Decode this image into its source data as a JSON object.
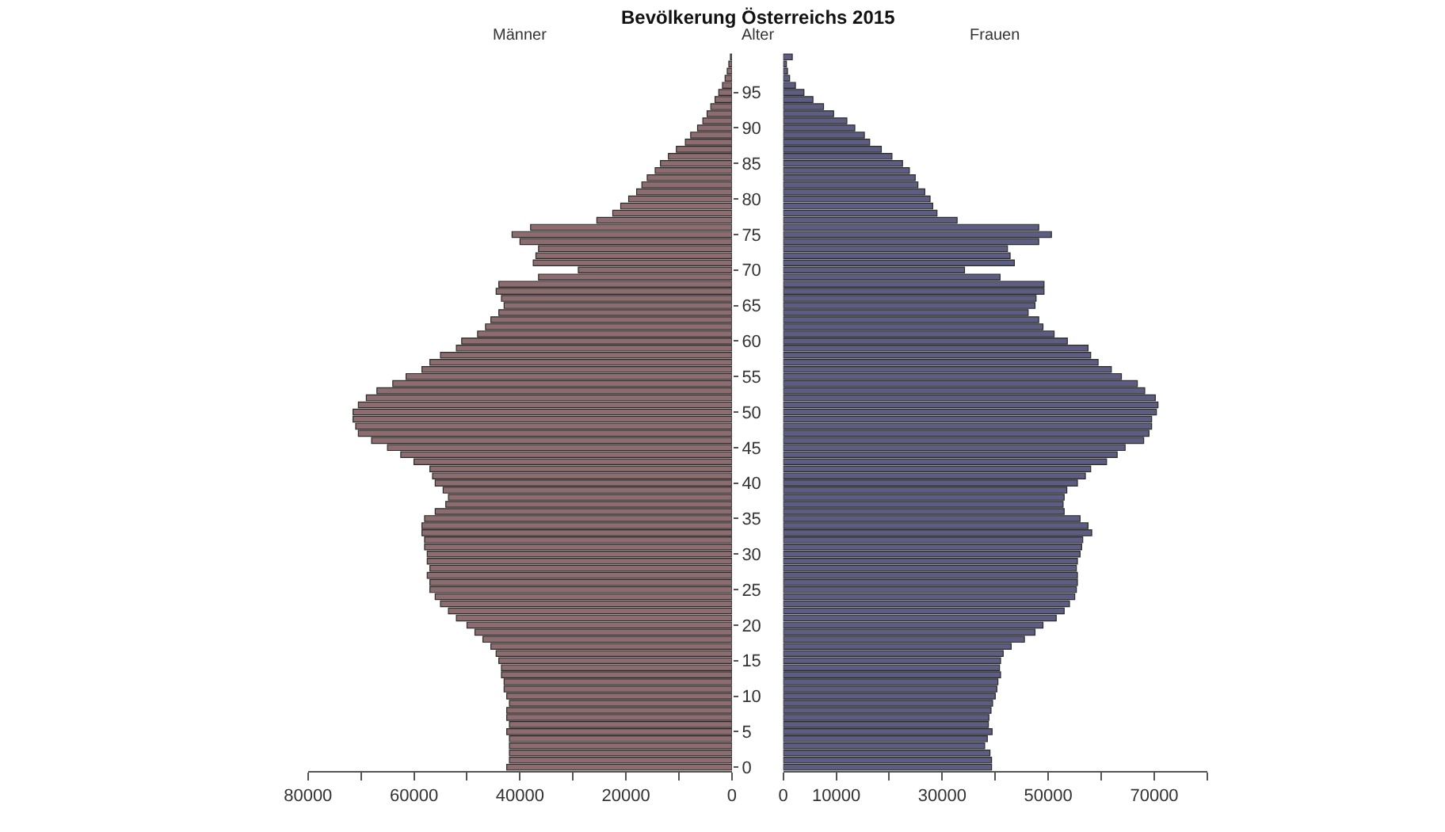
{
  "chart_data": [
    {
      "type": "bar",
      "orientation": "horizontal",
      "title": "Bevölkerung Österreichs 2015",
      "ylabel": "Alter",
      "categories": [
        null,
        null,
        null,
        null,
        null,
        "95",
        null,
        null,
        null,
        null,
        "90",
        null,
        null,
        null,
        null,
        "85",
        null,
        null,
        null,
        null,
        "80",
        null,
        null,
        null,
        null,
        "75",
        null,
        null,
        null,
        null,
        "70",
        null,
        null,
        null,
        null,
        "65",
        null,
        null,
        null,
        null,
        "60",
        null,
        null,
        null,
        null,
        "55",
        null,
        null,
        null,
        null,
        "50",
        null,
        null,
        null,
        null,
        "45",
        null,
        null,
        null,
        null,
        "40",
        null,
        null,
        null,
        null,
        "35",
        null,
        null,
        null,
        null,
        "30",
        null,
        null,
        null,
        null,
        "25",
        null,
        null,
        null,
        null,
        "20",
        null,
        null,
        null,
        null,
        "15",
        null,
        null,
        null,
        null,
        "10",
        null,
        null,
        null,
        null,
        "5",
        null,
        null,
        null,
        null,
        "0"
      ],
      "series": [
        {
          "name": "Männer",
          "color": "#8c6c6e",
          "values": [
            300,
            600,
            900,
            1300,
            1800,
            2500,
            3200,
            4000,
            4700,
            5500,
            6500,
            7800,
            8800,
            10500,
            12000,
            13500,
            14500,
            16000,
            17000,
            18000,
            19500,
            21000,
            22500,
            25500,
            38000,
            41500,
            40000,
            36500,
            37000,
            37500,
            29000,
            36500,
            44000,
            44500,
            43500,
            43000,
            44000,
            45500,
            46500,
            48000,
            51000,
            52000,
            55000,
            57000,
            58500,
            61500,
            64000,
            67000,
            69000,
            70500,
            71500,
            71500,
            71000,
            70500,
            68000,
            65000,
            62500,
            60000,
            57000,
            56500,
            56000,
            54500,
            53500,
            54000,
            56000,
            58000,
            58500,
            58500,
            58000,
            58000,
            57500,
            57500,
            57000,
            57500,
            57000,
            57000,
            56000,
            55000,
            53500,
            52000,
            50000,
            48500,
            47000,
            45500,
            44500,
            44000,
            43500,
            43500,
            43000,
            43000,
            42500,
            42000,
            42500,
            42500,
            42000,
            42500,
            42000,
            42000,
            42000,
            42000,
            42500
          ]
        }
      ],
      "xlim": [
        80000,
        0
      ],
      "xticks": [
        80000,
        {
          "value": 70000,
          "label": null
        },
        60000,
        {
          "value": 50000,
          "label": null
        },
        40000,
        {
          "value": 30000,
          "label": null
        },
        20000,
        {
          "value": 10000,
          "label": null
        },
        0
      ]
    },
    {
      "type": "bar",
      "orientation": "horizontal",
      "tick_labels": "x",
      "categories": [
        null,
        null,
        null,
        null,
        null,
        "95",
        null,
        null,
        null,
        null,
        "90",
        null,
        null,
        null,
        null,
        "85",
        null,
        null,
        null,
        null,
        "80",
        null,
        null,
        null,
        null,
        "75",
        null,
        null,
        null,
        null,
        "70",
        null,
        null,
        null,
        null,
        "65",
        null,
        null,
        null,
        null,
        "60",
        null,
        null,
        null,
        null,
        "55",
        null,
        null,
        null,
        null,
        "50",
        null,
        null,
        null,
        null,
        "45",
        null,
        null,
        null,
        null,
        "40",
        null,
        null,
        null,
        null,
        "35",
        null,
        null,
        null,
        null,
        "30",
        null,
        null,
        null,
        null,
        "25",
        null,
        null,
        null,
        null,
        "20",
        null,
        null,
        null,
        null,
        "15",
        null,
        null,
        null,
        null,
        "10",
        null,
        null,
        null,
        null,
        "5",
        null,
        null,
        null,
        null,
        "0"
      ],
      "series": [
        {
          "name": "Frauen",
          "color": "#5c5d80",
          "values": [
            1700,
            600,
            800,
            1200,
            2300,
            3900,
            5600,
            7600,
            9500,
            12000,
            13500,
            15300,
            16300,
            18500,
            20500,
            22500,
            23800,
            24900,
            25400,
            26700,
            27700,
            28200,
            29000,
            32800,
            48200,
            50600,
            48200,
            42300,
            42800,
            43600,
            34200,
            40900,
            49200,
            49200,
            47700,
            47500,
            46200,
            48200,
            49000,
            51100,
            53600,
            57500,
            58000,
            59400,
            61900,
            63800,
            66800,
            68200,
            70200,
            70700,
            70400,
            69500,
            69500,
            69000,
            68000,
            64500,
            63000,
            61000,
            58000,
            57000,
            55500,
            53500,
            53000,
            52800,
            53000,
            56000,
            57500,
            58200,
            56500,
            56300,
            56000,
            55500,
            55300,
            55500,
            55500,
            55300,
            55000,
            54000,
            53000,
            51500,
            49000,
            47500,
            45500,
            43000,
            41500,
            41000,
            40800,
            41000,
            40500,
            40300,
            40000,
            39500,
            39200,
            38800,
            38700,
            39400,
            38500,
            38000,
            39000,
            39300,
            39300
          ]
        }
      ],
      "xlim": [
        0,
        80000
      ],
      "xticks": [
        0,
        10000,
        {
          "value": 20000,
          "label": null
        },
        30000,
        {
          "value": 40000,
          "label": null
        },
        50000,
        {
          "value": 60000,
          "label": null
        },
        70000,
        {
          "value": 80000,
          "label": null
        }
      ]
    }
  ]
}
